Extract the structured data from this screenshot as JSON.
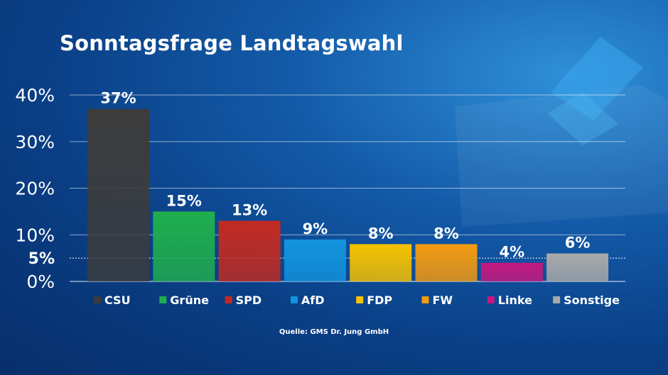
{
  "chart_data": {
    "type": "bar",
    "title": "Sonntagsfrage Landtagswahl",
    "categories": [
      "CSU",
      "Grüne",
      "SPD",
      "AfD",
      "FDP",
      "FW",
      "Linke",
      "Sonstige"
    ],
    "values": [
      37,
      15,
      13,
      9,
      8,
      8,
      4,
      6
    ],
    "value_labels": [
      "37%",
      "15%",
      "13%",
      "9%",
      "8%",
      "8%",
      "4%",
      "6%"
    ],
    "colors": [
      "#3c3c3c",
      "#1fae4d",
      "#c22a21",
      "#1393dd",
      "#f5c200",
      "#f39a10",
      "#c4187f",
      "#a9a9a9"
    ],
    "yticks": [
      0,
      10,
      20,
      30,
      40
    ],
    "ytick_labels": [
      "0%",
      "10%",
      "20%",
      "30%",
      "40%"
    ],
    "threshold": 5,
    "threshold_label": "5%",
    "ylim": [
      0,
      40
    ],
    "grid": true,
    "legend": "bottom",
    "xlabel": "",
    "ylabel": ""
  },
  "source": "Quelle: GMS Dr. Jung GmbH"
}
